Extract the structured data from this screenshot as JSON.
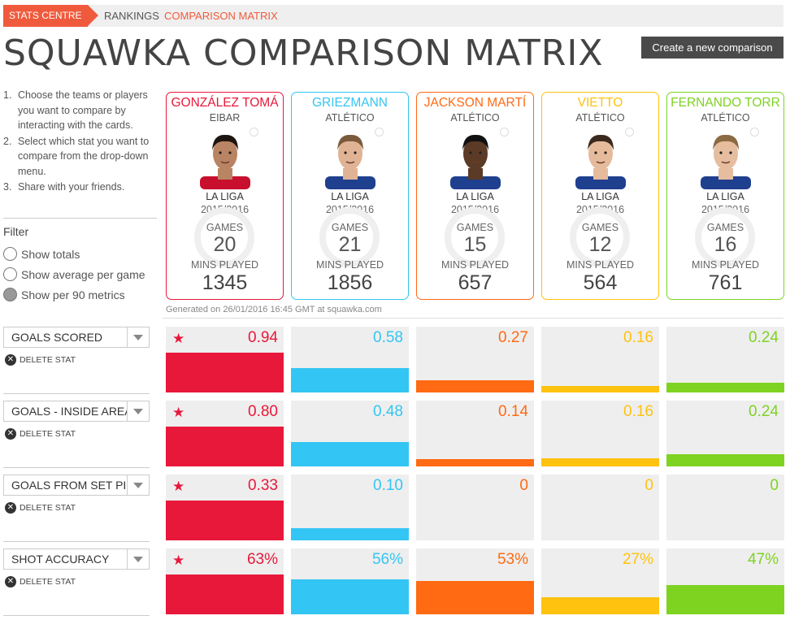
{
  "breadcrumb": {
    "home": "STATS CENTRE",
    "rankings": "RANKINGS",
    "current": "COMPARISON MATRIX"
  },
  "title": "SQUAWKA COMPARISON MATRIX",
  "new_button": "Create a new comparison",
  "instructions": [
    {
      "num": "1.",
      "text": "Choose the teams or players you want to compare by interacting with the cards."
    },
    {
      "num": "2.",
      "text": "Select which stat you want to compare from the drop-down menu."
    },
    {
      "num": "3.",
      "text": "Share with your friends."
    }
  ],
  "filter": {
    "title": "Filter",
    "options": [
      {
        "label": "Show totals",
        "checked": false
      },
      {
        "label": "Show average per game",
        "checked": false
      },
      {
        "label": "Show per 90 metrics",
        "checked": true
      }
    ]
  },
  "players": [
    {
      "name": "GONZÁLEZ TOMÁ",
      "team": "EIBAR",
      "league": "LA LIGA",
      "season": "2015/2016",
      "games_label": "GAMES",
      "games": "20",
      "mins_label": "MINS PLAYED",
      "mins": "1345",
      "color": "#e8183a"
    },
    {
      "name": "GRIEZMANN",
      "team": "ATLÉTICO",
      "league": "LA LIGA",
      "season": "2015/2016",
      "games_label": "GAMES",
      "games": "21",
      "mins_label": "MINS PLAYED",
      "mins": "1856",
      "color": "#33c5f3"
    },
    {
      "name": "JACKSON MARTÍ",
      "team": "ATLÉTICO",
      "league": "LA LIGA",
      "season": "2015/2016",
      "games_label": "GAMES",
      "games": "15",
      "mins_label": "MINS PLAYED",
      "mins": "657",
      "color": "#ff6a13"
    },
    {
      "name": "VIETTO",
      "team": "ATLÉTICO",
      "league": "LA LIGA",
      "season": "2015/2016",
      "games_label": "GAMES",
      "games": "12",
      "mins_label": "MINS PLAYED",
      "mins": "564",
      "color": "#ffc20e"
    },
    {
      "name": "FERNANDO TORR",
      "team": "ATLÉTICO",
      "league": "LA LIGA",
      "season": "2015/2016",
      "games_label": "GAMES",
      "games": "16",
      "mins_label": "MINS PLAYED",
      "mins": "761",
      "color": "#7ed321"
    }
  ],
  "generated": "Generated on 26/01/2016 16:45 GMT at squawka.com",
  "delete_label": "DELETE STAT",
  "stats": [
    {
      "name": "GOALS SCORED",
      "values": [
        "0.94",
        "0.58",
        "0.27",
        "0.16",
        "0.24"
      ],
      "fill": [
        0.6,
        0.37,
        0.18,
        0.1,
        0.15
      ],
      "best": 0
    },
    {
      "name": "GOALS - INSIDE AREA",
      "values": [
        "0.80",
        "0.48",
        "0.14",
        "0.16",
        "0.24"
      ],
      "fill": [
        0.6,
        0.37,
        0.11,
        0.12,
        0.18
      ],
      "best": 0
    },
    {
      "name": "GOALS FROM SET PIECES",
      "values": [
        "0.33",
        "0.10",
        "0",
        "0",
        "0"
      ],
      "fill": [
        0.6,
        0.18,
        0,
        0,
        0
      ],
      "best": 0
    },
    {
      "name": "SHOT ACCURACY",
      "values": [
        "63%",
        "56%",
        "53%",
        "27%",
        "47%"
      ],
      "fill": [
        0.6,
        0.53,
        0.5,
        0.26,
        0.45
      ],
      "best": 0
    }
  ]
}
